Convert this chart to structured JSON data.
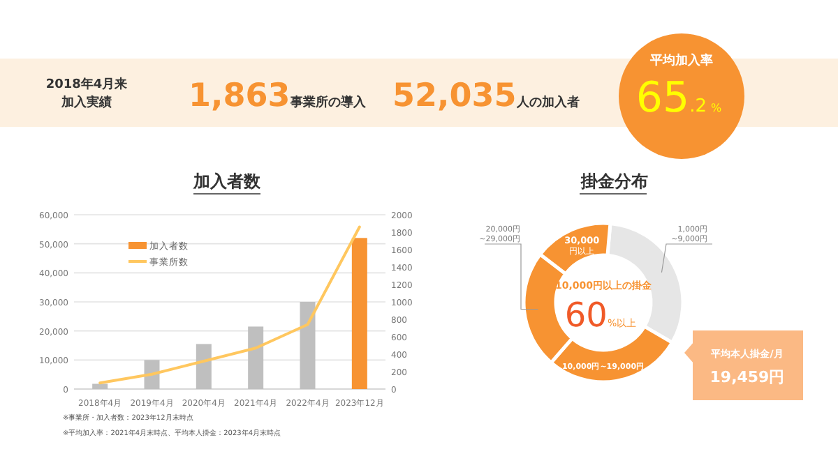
{
  "chart_data": [
    {
      "type": "other",
      "annotations": [
        "2018年4月来",
        "加入実績",
        "1,863",
        "事業所の導入",
        "52,035",
        "人の加入者",
        "平均加入率",
        "65.2",
        "%"
      ]
    },
    {
      "type": "bar",
      "title": "加入者数",
      "categories": [
        "2018年4月",
        "2019年4月",
        "2020年4月",
        "2021年4月",
        "2022年4月",
        "2023年12月"
      ],
      "series": [
        {
          "name": "加入者数",
          "type": "bar",
          "color": "#f79332",
          "colors": [
            "#bfbfbf",
            "#bfbfbf",
            "#bfbfbf",
            "#bfbfbf",
            "#bfbfbf",
            "#f79332"
          ],
          "values": [
            1800,
            10000,
            15500,
            21500,
            30000,
            52000
          ]
        },
        {
          "name": "事業所数",
          "type": "line",
          "axis": "y2",
          "color": "#ffc75f",
          "values": [
            70,
            170,
            320,
            470,
            740,
            1860
          ]
        }
      ],
      "ylim": [
        0,
        60000
      ],
      "yticks": [
        0,
        {
          "value": 10000,
          "label": "10,000"
        },
        {
          "value": 20000,
          "label": "20,000"
        },
        {
          "value": 30000,
          "label": "30,000"
        },
        {
          "value": 40000,
          "label": "40,000"
        },
        {
          "value": 50000,
          "label": "50,000"
        },
        {
          "value": 60000,
          "label": "60,000"
        }
      ],
      "y2lim": [
        0,
        2000
      ],
      "y2ticks": [
        0,
        200,
        400,
        600,
        800,
        1000,
        1200,
        1400,
        1600,
        1800,
        2000
      ],
      "grid": "y",
      "legend": "top left",
      "annotations": [
        "※事業所・加入者数：2023年12月末時点",
        "※平均加入率：2021年4月末時点、平均本人掛金：2023年4月末時点"
      ]
    },
    {
      "type": "donut",
      "title": "掛金分布",
      "categories": [
        "1,000円~9,000円",
        "10,000円~19,000円",
        "20,000円~29,000円",
        "30,000円以上"
      ],
      "values": [
        32,
        28,
        24,
        16
      ],
      "colors": [
        "#e6e6e6",
        "#f79332",
        "#f79332",
        "#f79332"
      ],
      "annotations": [
        "10,000円以上の掛金",
        "60%以上",
        "平均本人掛金/月",
        "19,459円"
      ]
    }
  ]
}
